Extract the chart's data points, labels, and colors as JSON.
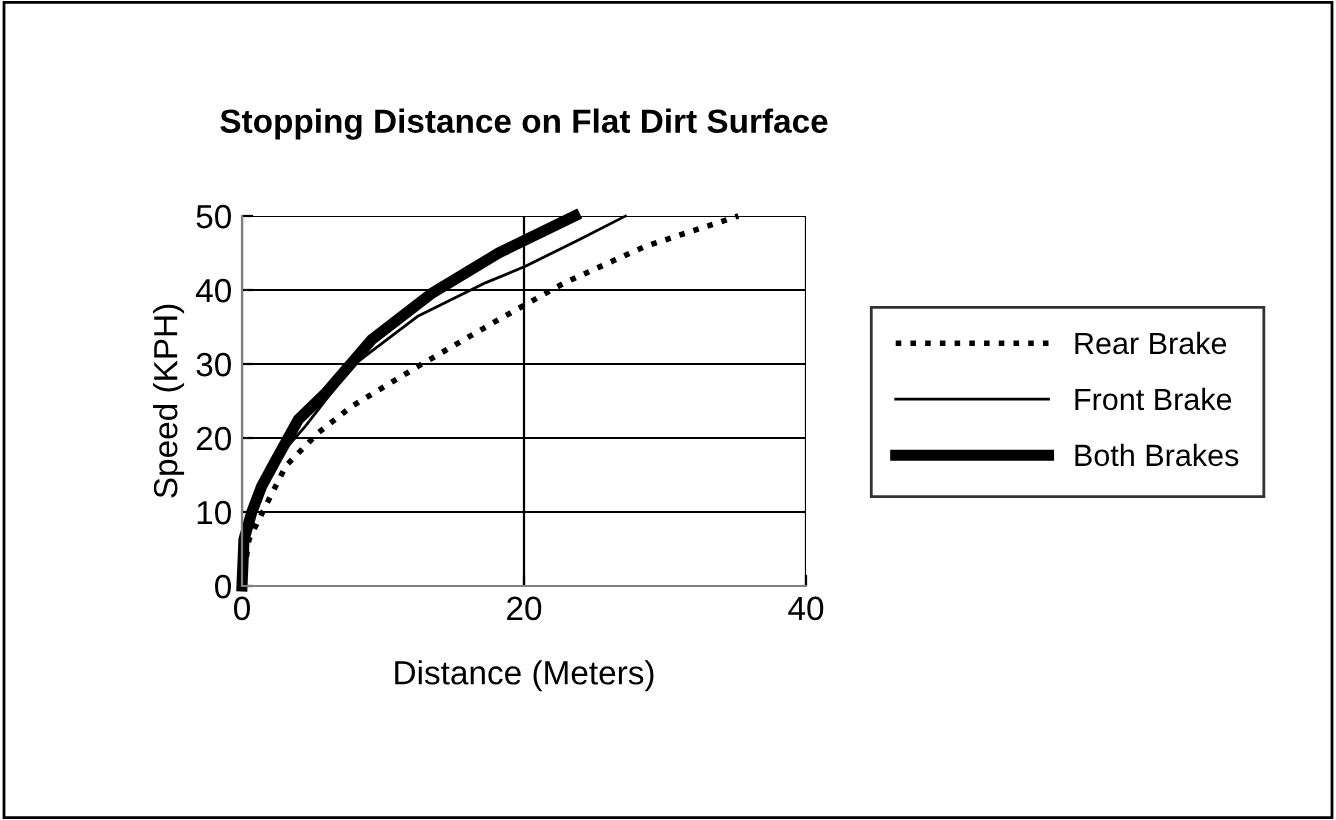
{
  "chart_data": {
    "type": "line",
    "title": "Stopping Distance on Flat Dirt Surface",
    "xlabel": "Distance (Meters)",
    "ylabel": "Speed (KPH)",
    "xlim": [
      0,
      40
    ],
    "xticks": [
      0,
      20,
      40
    ],
    "ylim": [
      0,
      50
    ],
    "yticks": [
      0,
      10,
      20,
      30,
      40,
      50
    ],
    "grid": true,
    "legend": "right",
    "marker": "none",
    "series": [
      {
        "name": "Rear Brake",
        "color": "#000000",
        "line_style": "dotted",
        "x": [
          0,
          0.5,
          1.2,
          3.1,
          5.4,
          7.8,
          12.5,
          18.2,
          22.9,
          28.6,
          35.2
        ],
        "values": [
          0,
          6.3,
          9,
          16.2,
          20.7,
          24.3,
          29.7,
          36,
          41,
          45.9,
          50
        ]
      },
      {
        "name": "Front Brake",
        "color": "#000000",
        "line_style": "solid",
        "x": [
          0,
          0.24,
          0.95,
          2.4,
          4.5,
          7.8,
          12.5,
          17.3,
          20.1,
          23.9,
          27.2
        ],
        "values": [
          0,
          6.3,
          11.7,
          17,
          21.6,
          29.7,
          36.5,
          41,
          43.2,
          46.8,
          50
        ]
      },
      {
        "name": "Both Brakes",
        "color": "#000000",
        "line_style": "solid",
        "x": [
          0,
          0.14,
          0.7,
          1.4,
          2.4,
          4,
          5.9,
          9.2,
          13.5,
          18.2,
          23.6
        ],
        "values": [
          0,
          6.3,
          10,
          13.5,
          17,
          22.5,
          26,
          33.3,
          39.6,
          45,
          50
        ]
      }
    ]
  }
}
